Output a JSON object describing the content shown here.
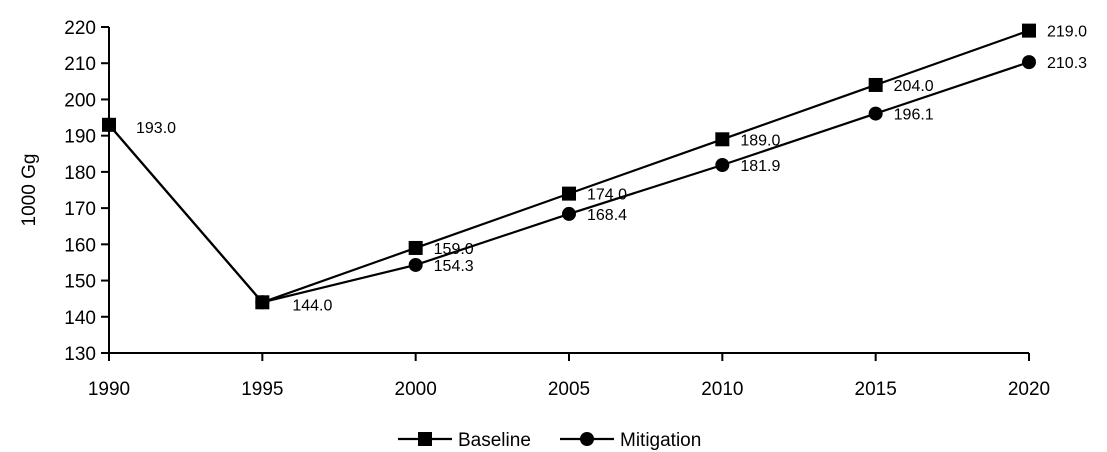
{
  "chart_data": {
    "type": "line",
    "title": "",
    "xlabel": "",
    "ylabel": "1000 Gg",
    "x": [
      1990,
      1995,
      2000,
      2005,
      2010,
      2015,
      2020
    ],
    "ylim": [
      130,
      220
    ],
    "yticks": [
      130,
      140,
      150,
      160,
      170,
      180,
      190,
      200,
      210,
      220
    ],
    "grid": false,
    "legend_position": "bottom",
    "series": [
      {
        "name": "Baseline",
        "marker": "square",
        "color": "#000000",
        "values": [
          193.0,
          144.0,
          159.0,
          174.0,
          189.0,
          204.0,
          219.0
        ],
        "labels": [
          "193.0",
          "144.0",
          "159.0",
          "174.0",
          "189.0",
          "204.0",
          "219.0"
        ]
      },
      {
        "name": "Mitigation",
        "marker": "circle",
        "color": "#000000",
        "values": [
          193.0,
          144.0,
          154.3,
          168.4,
          181.9,
          196.1,
          210.3
        ],
        "labels": [
          "",
          "",
          "154.3",
          "168.4",
          "181.9",
          "196.1",
          "210.3"
        ]
      }
    ]
  }
}
